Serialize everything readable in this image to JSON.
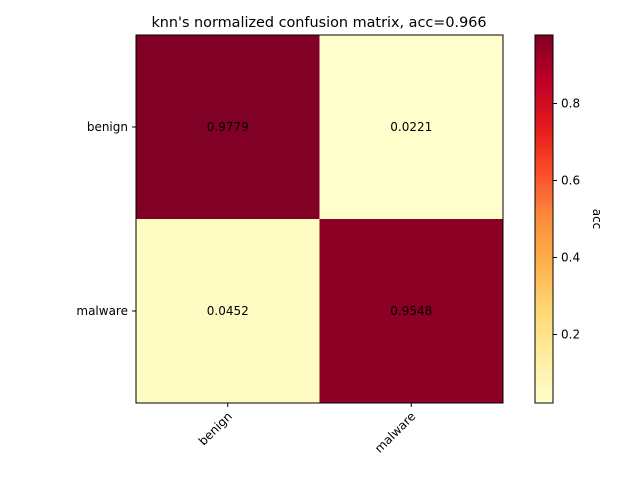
{
  "chart_data": {
    "type": "heatmap",
    "title": "knn's normalized confusion matrix, acc=0.966",
    "row_labels": [
      "benign",
      "malware"
    ],
    "col_labels": [
      "benign",
      "malware"
    ],
    "values": [
      [
        0.9779,
        0.0221
      ],
      [
        0.0452,
        0.9548
      ]
    ],
    "cell_labels": [
      [
        "0.9779",
        "0.0221"
      ],
      [
        "0.0452",
        "0.9548"
      ]
    ],
    "colorbar": {
      "label": "acc",
      "colormap": "YlOrRd",
      "range": [
        0.0221,
        0.9779
      ],
      "ticks": [
        0.2,
        0.4,
        0.6,
        0.8
      ],
      "tick_labels": [
        "0.2",
        "0.4",
        "0.6",
        "0.8"
      ]
    },
    "colors": {
      "low": "#ffffcc",
      "high": "#800026"
    }
  }
}
